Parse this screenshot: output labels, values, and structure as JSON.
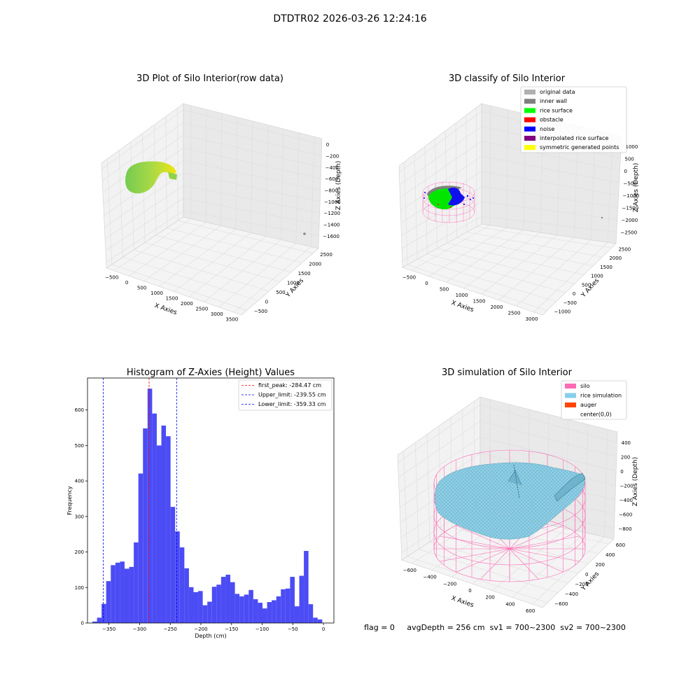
{
  "figure": {
    "suptitle": "DTDTR02 2026-03-26 12:24:16",
    "status_line": "flag = 0     avgDepth = 256 cm  sv1 = 700~2300  sv2 = 700~2300"
  },
  "chart_data": [
    {
      "type": "scatter",
      "projection": "3d",
      "title": "3D Plot of Silo Interior(row data)",
      "xlabel": "X Axies",
      "ylabel": "Y Axies",
      "zlabel": "Z Axies (Depth)",
      "x_ticks": [
        -500,
        0,
        500,
        1000,
        1500,
        2000,
        2500,
        3000,
        3500
      ],
      "y_ticks": [
        -500,
        0,
        500,
        1000,
        1500,
        2000,
        2500
      ],
      "z_ticks": [
        0,
        -200,
        -400,
        -600,
        -800,
        -1000,
        -1200,
        -1400,
        -1600
      ],
      "colors": {
        "low": "#7ccf3e",
        "high": "#f2e600",
        "outlier": "#888888"
      }
    },
    {
      "type": "scatter",
      "projection": "3d",
      "title": "3D classify of Silo Interior",
      "xlabel": "X Axies",
      "ylabel": "Y Axies",
      "zlabel": "Z Axies (Depth)",
      "x_ticks": [
        -500,
        0,
        500,
        1000,
        1500,
        2000,
        2500,
        3000
      ],
      "y_ticks": [
        -1000,
        -500,
        0,
        500,
        1000,
        1500,
        2000,
        2500
      ],
      "z_ticks": [
        1000,
        500,
        0,
        -500,
        -1000,
        -1500,
        -2000,
        -2500
      ],
      "legend_position": "upper-right",
      "legend": [
        {
          "label": "original data",
          "color": "#b0b0b0"
        },
        {
          "label": "inner wall",
          "color": "#808080"
        },
        {
          "label": "rice surface",
          "color": "#00ff00"
        },
        {
          "label": "obstacle",
          "color": "#ff0000"
        },
        {
          "label": "noise",
          "color": "#0000ff"
        },
        {
          "label": "interpolated rice surface",
          "color": "#800080"
        },
        {
          "label": "symmetric generated points",
          "color": "#ffff00"
        }
      ]
    },
    {
      "type": "bar",
      "title": "Histogram of Z-Axies (Height) Values",
      "xlabel": "Depth (cm)",
      "ylabel": "Frequency",
      "xlim": [
        -385,
        17
      ],
      "ylim": [
        0,
        690
      ],
      "x_ticks": [
        -350,
        -300,
        -250,
        -200,
        -150,
        -100,
        -50,
        0
      ],
      "y_ticks": [
        0,
        100,
        200,
        300,
        400,
        500,
        600
      ],
      "bar_color": "#4c4cf5",
      "bin_start": -377,
      "bin_width": 7.5,
      "values": [
        4,
        15,
        54,
        118,
        163,
        170,
        173,
        153,
        158,
        227,
        421,
        548,
        660,
        590,
        500,
        556,
        526,
        327,
        258,
        213,
        154,
        101,
        87,
        90,
        50,
        60,
        102,
        108,
        130,
        136,
        115,
        82,
        75,
        80,
        93,
        67,
        57,
        41,
        59,
        64,
        75,
        95,
        97,
        130,
        47,
        133,
        203,
        53,
        15,
        10
      ],
      "lines": [
        {
          "label": "first_peak: -284.47 cm",
          "x": -284.47,
          "color": "#ff0000"
        },
        {
          "label": "Upper_limit: -239.55 cm",
          "x": -239.55,
          "color": "#0000ff"
        },
        {
          "label": "Lower_limit: -359.33 cm",
          "x": -359.33,
          "color": "#0000ff"
        }
      ],
      "legend_position": "upper-right"
    },
    {
      "type": "surface",
      "projection": "3d",
      "title": "3D simulation of Silo Interior",
      "xlabel": "X Axies",
      "ylabel": "Y Axies",
      "zlabel": "Z Axies (Depth)",
      "x_ticks": [
        -600,
        -400,
        -200,
        0,
        200,
        400,
        600
      ],
      "y_ticks": [
        -600,
        -400,
        -200,
        0,
        200,
        400,
        600
      ],
      "z_ticks": [
        400,
        200,
        0,
        -200,
        -400,
        -600,
        -800
      ],
      "legend_position": "upper-right",
      "legend": [
        {
          "label": "silo",
          "color": "#ff69b4"
        },
        {
          "label": "rice simulation",
          "color": "#87ceeb"
        },
        {
          "label": "auger",
          "color": "#ff4500"
        },
        {
          "label": "center(0,0)",
          "color": "#ffffff"
        }
      ]
    }
  ]
}
